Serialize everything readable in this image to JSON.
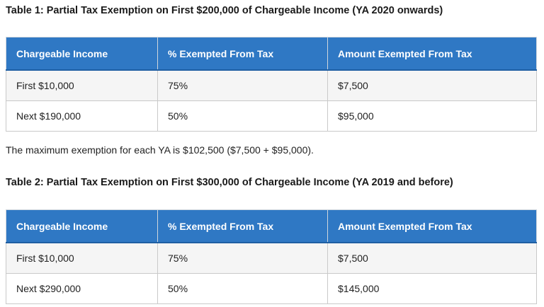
{
  "table1": {
    "heading": "Table 1: Partial Tax Exemption on First $200,000 of Chargeable Income (YA 2020 onwards)",
    "headers": [
      "Chargeable Income",
      "% Exempted From Tax",
      "Amount Exempted From Tax"
    ],
    "rows": [
      [
        "First $10,000",
        "75%",
        "$7,500"
      ],
      [
        "Next $190,000",
        "50%",
        "$95,000"
      ]
    ]
  },
  "note": "The maximum exemption for each YA is $102,500 ($7,500 + $95,000).",
  "table2": {
    "heading": "Table 2: Partial Tax Exemption on First $300,000 of Chargeable Income (YA 2019 and before)",
    "headers": [
      "Chargeable Income",
      "% Exempted From Tax",
      "Amount Exempted From Tax"
    ],
    "rows": [
      [
        "First $10,000",
        "75%",
        "$7,500"
      ],
      [
        "Next $290,000",
        "50%",
        "$145,000"
      ]
    ]
  },
  "colors": {
    "header_bg": "#2f78c4",
    "header_text": "#ffffff",
    "row_alt_bg": "#f5f5f5"
  }
}
